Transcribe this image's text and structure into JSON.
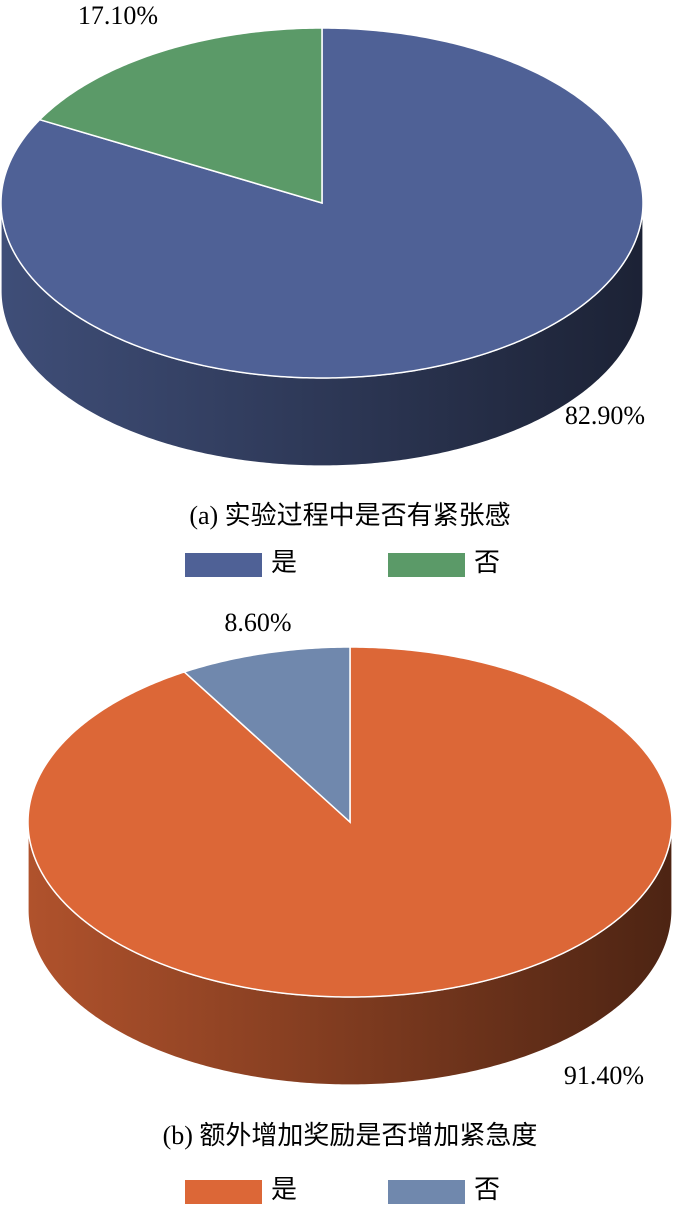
{
  "chart_data": [
    {
      "type": "pie",
      "title": "(a) 实验过程中是否有紧张感",
      "categories": [
        "是",
        "否"
      ],
      "values": [
        82.9,
        17.1
      ],
      "value_labels": [
        "82.90%",
        "17.10%"
      ],
      "colors": [
        "#4f6196",
        "#5b9a68"
      ],
      "legend": true
    },
    {
      "type": "pie",
      "title": "(b) 额外增加奖励是否增加紧急度",
      "categories": [
        "是",
        "否"
      ],
      "values": [
        91.4,
        8.6
      ],
      "value_labels": [
        "91.40%",
        "8.60%"
      ],
      "colors": [
        "#dc6737",
        "#7088ad"
      ],
      "legend": true
    }
  ]
}
